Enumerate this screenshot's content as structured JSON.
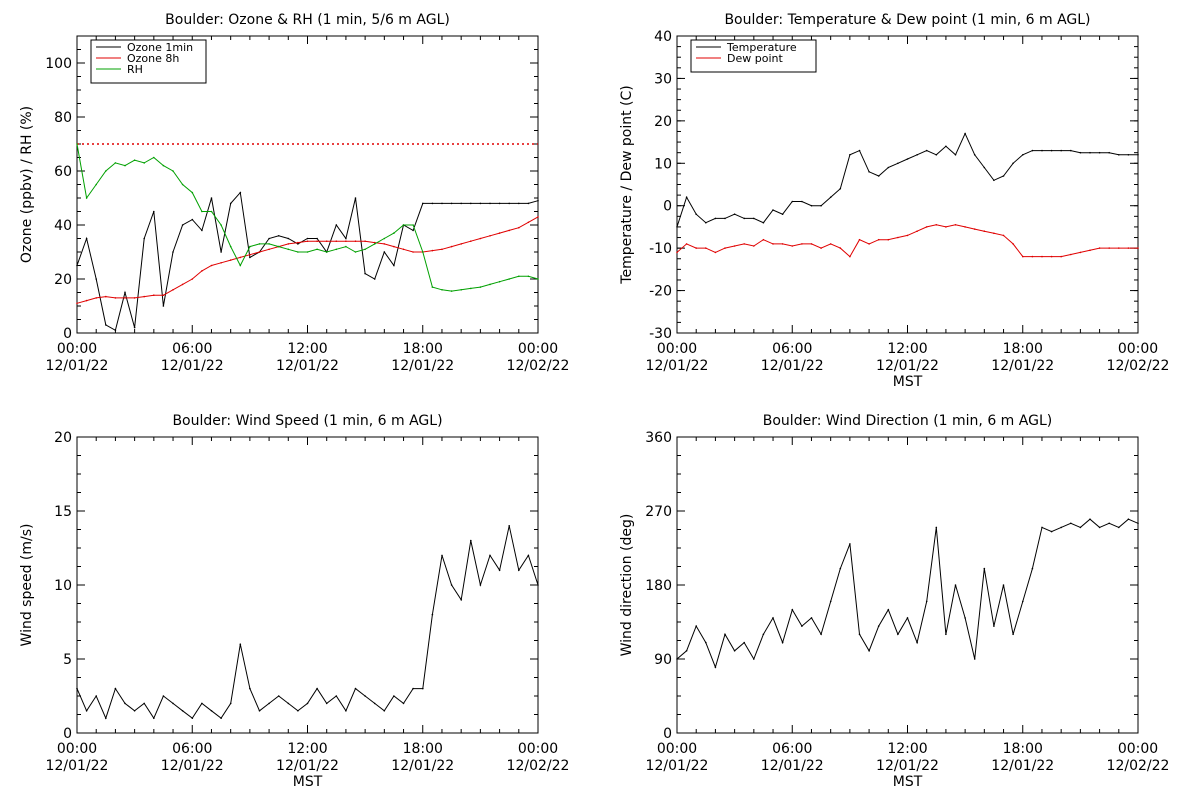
{
  "colors": {
    "black": "#000000",
    "red": "#e00000",
    "green": "#00a000"
  },
  "chart_data": [
    {
      "type": "line",
      "title": "Boulder: Ozone & RH (1 min, 5/6 m AGL)",
      "xlabel": "",
      "ylabel": "Ozone (ppbv) / RH (%)",
      "xlim": [
        "12/01/22 00:00",
        "12/02/22 00:00"
      ],
      "ylim": [
        0,
        110
      ],
      "yticks": [
        0,
        20,
        40,
        60,
        80,
        100
      ],
      "xtick_labels": [
        {
          "time": "00:00",
          "date": "12/01/22"
        },
        {
          "time": "06:00",
          "date": "12/01/22"
        },
        {
          "time": "12:00",
          "date": "12/01/22"
        },
        {
          "time": "18:00",
          "date": "12/01/22"
        },
        {
          "time": "00:00",
          "date": "12/02/22"
        }
      ],
      "legend_position": "top-left",
      "reference_line": {
        "y": 70,
        "style": "dotted",
        "color": "#e00000"
      },
      "x_hours": [
        0,
        0.5,
        1,
        1.5,
        2,
        2.5,
        3,
        3.5,
        4,
        4.5,
        5,
        5.5,
        6,
        6.5,
        7,
        7.5,
        8,
        8.5,
        9,
        9.5,
        10,
        10.5,
        11,
        11.5,
        12,
        12.5,
        13,
        13.5,
        14,
        14.5,
        15,
        15.5,
        16,
        16.5,
        17,
        17.5,
        18,
        18.5,
        19,
        19.5,
        20,
        20.5,
        21,
        21.5,
        22,
        22.5,
        23,
        23.5,
        24
      ],
      "series": [
        {
          "name": "Ozone 1min",
          "color": "#000000",
          "values": [
            25,
            35,
            20,
            3,
            1,
            15,
            2,
            35,
            45,
            10,
            30,
            40,
            42,
            38,
            50,
            30,
            48,
            52,
            28,
            30,
            35,
            36,
            35,
            33,
            35,
            35,
            30,
            40,
            35,
            50,
            22,
            20,
            30,
            25,
            40,
            38,
            48,
            48,
            48,
            48,
            48,
            48,
            48,
            48,
            48,
            48,
            48,
            48,
            49
          ]
        },
        {
          "name": "Ozone 8h",
          "color": "#e00000",
          "values": [
            11,
            12,
            13,
            13.5,
            13,
            13,
            13,
            13.5,
            14,
            14,
            16,
            18,
            20,
            23,
            25,
            26,
            27,
            28,
            29,
            30,
            31,
            32,
            33,
            33.5,
            34,
            34,
            34,
            34,
            34,
            34,
            34,
            33.5,
            33,
            32,
            31,
            30,
            30,
            30.5,
            31,
            32,
            33,
            34,
            35,
            36,
            37,
            38,
            39,
            41,
            43
          ]
        },
        {
          "name": "RH",
          "color": "#00a000",
          "values": [
            70,
            50,
            55,
            60,
            63,
            62,
            64,
            63,
            65,
            62,
            60,
            55,
            52,
            45,
            45,
            40,
            32,
            25,
            32,
            33,
            33,
            32,
            31,
            30,
            30,
            31,
            30,
            31,
            32,
            30,
            31,
            33,
            35,
            37,
            40,
            40,
            30,
            17,
            16,
            15.5,
            16,
            16.5,
            17,
            18,
            19,
            20,
            21,
            21,
            20
          ]
        }
      ]
    },
    {
      "type": "line",
      "title": "Boulder: Temperature & Dew point (1 min, 6 m AGL)",
      "xlabel": "MST",
      "ylabel": "Temperature / Dew point (C)",
      "xlim": [
        "12/01/22 00:00",
        "12/02/22 00:00"
      ],
      "ylim": [
        -30,
        40
      ],
      "yticks": [
        -30,
        -20,
        -10,
        0,
        10,
        20,
        30,
        40
      ],
      "xtick_labels": [
        {
          "time": "00:00",
          "date": "12/01/22"
        },
        {
          "time": "06:00",
          "date": "12/01/22"
        },
        {
          "time": "12:00",
          "date": "12/01/22"
        },
        {
          "time": "18:00",
          "date": "12/01/22"
        },
        {
          "time": "00:00",
          "date": "12/02/22"
        }
      ],
      "legend_position": "top-left",
      "x_hours": [
        0,
        0.5,
        1,
        1.5,
        2,
        2.5,
        3,
        3.5,
        4,
        4.5,
        5,
        5.5,
        6,
        6.5,
        7,
        7.5,
        8,
        8.5,
        9,
        9.5,
        10,
        10.5,
        11,
        11.5,
        12,
        12.5,
        13,
        13.5,
        14,
        14.5,
        15,
        15.5,
        16,
        16.5,
        17,
        17.5,
        18,
        18.5,
        19,
        19.5,
        20,
        20.5,
        21,
        21.5,
        22,
        22.5,
        23,
        23.5,
        24
      ],
      "series": [
        {
          "name": "Temperature",
          "color": "#000000",
          "values": [
            -5,
            2,
            -2,
            -4,
            -3,
            -3,
            -2,
            -3,
            -3,
            -4,
            -1,
            -2,
            1,
            1,
            0,
            0,
            2,
            4,
            12,
            13,
            8,
            7,
            9,
            10,
            11,
            12,
            13,
            12,
            14,
            12,
            17,
            12,
            9,
            6,
            7,
            10,
            12,
            13,
            13,
            13,
            13,
            13,
            12.5,
            12.5,
            12.5,
            12.5,
            12,
            12,
            12
          ]
        },
        {
          "name": "Dew point",
          "color": "#e00000",
          "values": [
            -11,
            -9,
            -10,
            -10,
            -11,
            -10,
            -9.5,
            -9,
            -9.5,
            -8,
            -9,
            -9,
            -9.5,
            -9,
            -9,
            -10,
            -9,
            -10,
            -12,
            -8,
            -9,
            -8,
            -8,
            -7.5,
            -7,
            -6,
            -5,
            -4.5,
            -5,
            -4.5,
            -5,
            -5.5,
            -6,
            -6.5,
            -7,
            -9,
            -12,
            -12,
            -12,
            -12,
            -12,
            -11.5,
            -11,
            -10.5,
            -10,
            -10,
            -10,
            -10,
            -10
          ]
        }
      ]
    },
    {
      "type": "line",
      "title": "Boulder: Wind Speed (1 min, 6 m AGL)",
      "xlabel": "MST",
      "ylabel": "Wind speed (m/s)",
      "xlim": [
        "12/01/22 00:00",
        "12/02/22 00:00"
      ],
      "ylim": [
        0,
        20
      ],
      "yticks": [
        0,
        5,
        10,
        15,
        20
      ],
      "xtick_labels": [
        {
          "time": "00:00",
          "date": "12/01/22"
        },
        {
          "time": "06:00",
          "date": "12/01/22"
        },
        {
          "time": "12:00",
          "date": "12/01/22"
        },
        {
          "time": "18:00",
          "date": "12/01/22"
        },
        {
          "time": "00:00",
          "date": "12/02/22"
        }
      ],
      "x_hours": [
        0,
        0.5,
        1,
        1.5,
        2,
        2.5,
        3,
        3.5,
        4,
        4.5,
        5,
        5.5,
        6,
        6.5,
        7,
        7.5,
        8,
        8.5,
        9,
        9.5,
        10,
        10.5,
        11,
        11.5,
        12,
        12.5,
        13,
        13.5,
        14,
        14.5,
        15,
        15.5,
        16,
        16.5,
        17,
        17.5,
        18,
        18.5,
        19,
        19.5,
        20,
        20.5,
        21,
        21.5,
        22,
        22.5,
        23,
        23.5,
        24
      ],
      "series": [
        {
          "name": "",
          "color": "#000000",
          "values": [
            3,
            1.5,
            2.5,
            1,
            3,
            2,
            1.5,
            2,
            1,
            2.5,
            2,
            1.5,
            1,
            2,
            1.5,
            1,
            2,
            6,
            3,
            1.5,
            2,
            2.5,
            2,
            1.5,
            2,
            3,
            2,
            2.5,
            1.5,
            3,
            2.5,
            2,
            1.5,
            2.5,
            2,
            3,
            3,
            8,
            12,
            10,
            9,
            13,
            10,
            12,
            11,
            14,
            11,
            12,
            10
          ]
        }
      ]
    },
    {
      "type": "line",
      "title": "Boulder: Wind Direction (1 min, 6 m AGL)",
      "xlabel": "MST",
      "ylabel": "Wind direction (deg)",
      "xlim": [
        "12/01/22 00:00",
        "12/02/22 00:00"
      ],
      "ylim": [
        0,
        360
      ],
      "yticks": [
        0,
        90,
        180,
        270,
        360
      ],
      "xtick_labels": [
        {
          "time": "00:00",
          "date": "12/01/22"
        },
        {
          "time": "06:00",
          "date": "12/01/22"
        },
        {
          "time": "12:00",
          "date": "12/01/22"
        },
        {
          "time": "18:00",
          "date": "12/01/22"
        },
        {
          "time": "00:00",
          "date": "12/02/22"
        }
      ],
      "x_hours": [
        0,
        0.5,
        1,
        1.5,
        2,
        2.5,
        3,
        3.5,
        4,
        4.5,
        5,
        5.5,
        6,
        6.5,
        7,
        7.5,
        8,
        8.5,
        9,
        9.5,
        10,
        10.5,
        11,
        11.5,
        12,
        12.5,
        13,
        13.5,
        14,
        14.5,
        15,
        15.5,
        16,
        16.5,
        17,
        17.5,
        18,
        18.5,
        19,
        19.5,
        20,
        20.5,
        21,
        21.5,
        22,
        22.5,
        23,
        23.5,
        24
      ],
      "series": [
        {
          "name": "",
          "color": "#000000",
          "values": [
            90,
            100,
            130,
            110,
            80,
            120,
            100,
            110,
            90,
            120,
            140,
            110,
            150,
            130,
            140,
            120,
            160,
            200,
            230,
            120,
            100,
            130,
            150,
            120,
            140,
            110,
            160,
            250,
            120,
            180,
            140,
            90,
            200,
            130,
            180,
            120,
            160,
            200,
            250,
            245,
            250,
            255,
            250,
            260,
            250,
            255,
            250,
            260,
            255
          ]
        }
      ]
    }
  ]
}
